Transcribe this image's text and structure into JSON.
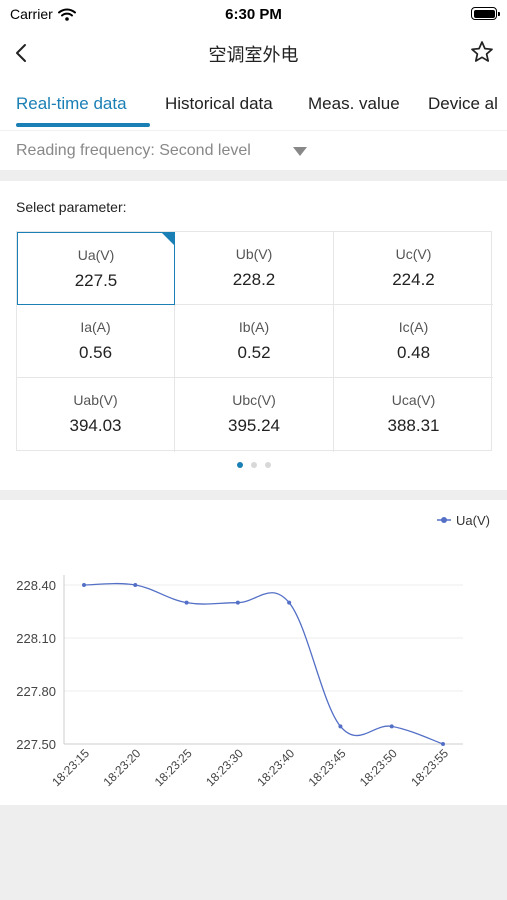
{
  "status_bar": {
    "carrier": "Carrier",
    "time": "6:30 PM"
  },
  "nav": {
    "title": "空调室外电"
  },
  "tabs": [
    {
      "label": "Real-time data",
      "active": true
    },
    {
      "label": "Historical data",
      "active": false
    },
    {
      "label": "Meas. value",
      "active": false
    },
    {
      "label": "Device al",
      "active": false
    }
  ],
  "reading_frequency": {
    "label": "Reading frequency: Second level"
  },
  "parameters": {
    "title": "Select parameter:",
    "selected_index": 0,
    "page_count": 3,
    "active_page": 0,
    "items": [
      {
        "name": "Ua(V)",
        "value": "227.5"
      },
      {
        "name": "Ub(V)",
        "value": "228.2"
      },
      {
        "name": "Uc(V)",
        "value": "224.2"
      },
      {
        "name": "Ia(A)",
        "value": "0.56"
      },
      {
        "name": "Ib(A)",
        "value": "0.52"
      },
      {
        "name": "Ic(A)",
        "value": "0.48"
      },
      {
        "name": "Uab(V)",
        "value": "394.03"
      },
      {
        "name": "Ubc(V)",
        "value": "395.24"
      },
      {
        "name": "Uca(V)",
        "value": "388.31"
      }
    ]
  },
  "colors": {
    "accent": "#1a7fb5",
    "series": "#5470c6",
    "grid": "#ececec"
  },
  "chart_data": {
    "type": "line",
    "title": "",
    "xlabel": "",
    "ylabel": "",
    "legend_position": "top-right",
    "grid": true,
    "x": [
      "18:23:15",
      "18:23:20",
      "18:23:25",
      "18:23:30",
      "18:23:40",
      "18:23:45",
      "18:23:50",
      "18:23:55"
    ],
    "ylim": [
      227.5,
      228.4
    ],
    "yticks": [
      "227.50",
      "227.80",
      "228.10",
      "228.40"
    ],
    "series": [
      {
        "name": "Ua(V)",
        "values": [
          228.4,
          228.4,
          228.3,
          228.3,
          228.3,
          227.6,
          227.6,
          227.5
        ]
      }
    ]
  }
}
